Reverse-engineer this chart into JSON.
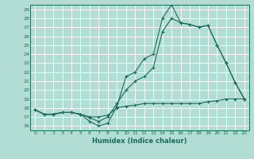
{
  "xlabel": "Humidex (Indice chaleur)",
  "bg_color": "#b2ddd4",
  "grid_color": "#ffffff",
  "line_color": "#1a6b5a",
  "xlim": [
    -0.5,
    23.5
  ],
  "ylim": [
    15.5,
    29.5
  ],
  "yticks": [
    16,
    17,
    18,
    19,
    20,
    21,
    22,
    23,
    24,
    25,
    26,
    27,
    28,
    29
  ],
  "xticks": [
    0,
    1,
    2,
    3,
    4,
    5,
    6,
    7,
    8,
    9,
    10,
    11,
    12,
    13,
    14,
    15,
    16,
    17,
    18,
    19,
    20,
    21,
    22,
    23
  ],
  "line1_x": [
    0,
    1,
    2,
    3,
    4,
    5,
    6,
    7,
    8,
    9,
    10,
    11,
    12,
    13,
    14,
    15,
    16,
    17,
    18,
    19,
    20,
    21,
    22,
    23
  ],
  "line1_y": [
    17.8,
    17.3,
    17.3,
    17.5,
    17.5,
    17.3,
    16.5,
    16.0,
    16.3,
    18.2,
    21.5,
    22.0,
    23.5,
    24.0,
    28.0,
    29.5,
    27.5,
    27.3,
    27.0,
    27.2,
    25.0,
    23.0,
    20.8,
    19.0
  ],
  "line2_x": [
    0,
    1,
    2,
    3,
    4,
    5,
    6,
    7,
    8,
    9,
    10,
    11,
    12,
    13,
    14,
    15,
    16,
    17,
    18,
    19,
    20,
    21,
    22,
    23
  ],
  "line2_y": [
    17.8,
    17.3,
    17.3,
    17.5,
    17.5,
    17.3,
    16.9,
    16.5,
    17.0,
    18.5,
    20.0,
    21.0,
    21.5,
    22.5,
    26.5,
    28.0,
    27.5,
    27.3,
    27.0,
    27.2,
    25.0,
    23.0,
    20.8,
    19.0
  ],
  "line3_x": [
    0,
    1,
    2,
    3,
    4,
    5,
    6,
    7,
    8,
    9,
    10,
    11,
    12,
    13,
    14,
    15,
    16,
    17,
    18,
    19,
    20,
    21,
    22,
    23
  ],
  "line3_y": [
    17.8,
    17.3,
    17.3,
    17.5,
    17.5,
    17.3,
    17.0,
    17.0,
    17.2,
    18.0,
    18.2,
    18.3,
    18.5,
    18.5,
    18.5,
    18.5,
    18.5,
    18.5,
    18.5,
    18.7,
    18.8,
    19.0,
    19.0,
    19.0
  ]
}
